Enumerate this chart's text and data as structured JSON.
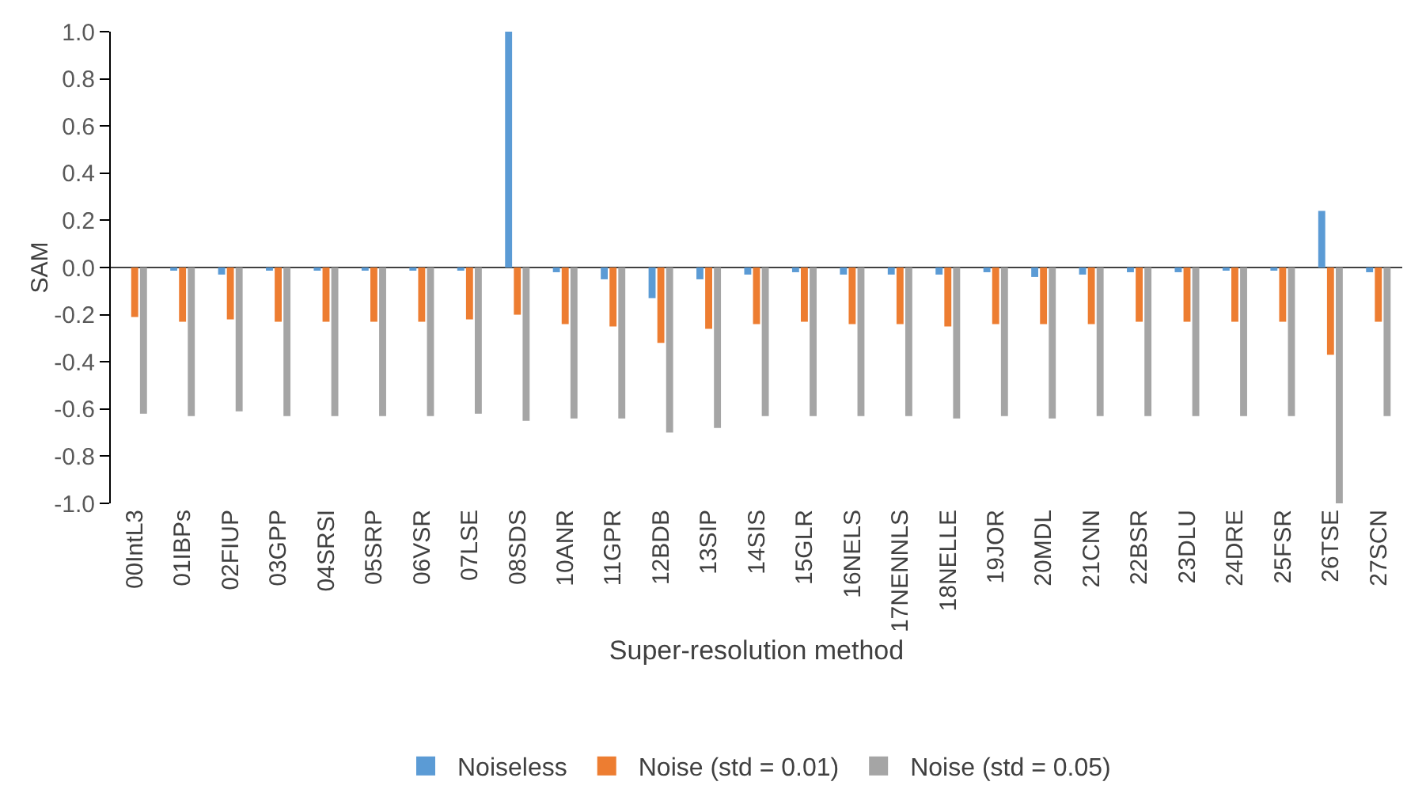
{
  "chart_data": {
    "type": "bar",
    "xlabel": "Super-resolution method",
    "ylabel": "SAM",
    "categories": [
      "00IntL3",
      "01IBPs",
      "02FIUP",
      "03GPP",
      "04SRSI",
      "05SRP",
      "06VSR",
      "07LSE",
      "08SDS",
      "10ANR",
      "11GPR",
      "12BDB",
      "13SIP",
      "14SIS",
      "15GLR",
      "16NELS",
      "17NENNLS",
      "18NELLE",
      "19JOR",
      "20MDL",
      "21CNN",
      "22BSR",
      "23DLU",
      "24DRE",
      "25FSR",
      "26TSE",
      "27SCN"
    ],
    "series": [
      {
        "name": "Noiseless",
        "color": "#5b9bd5",
        "values": [
          0,
          -0.01,
          -0.03,
          -0.01,
          -0.01,
          -0.01,
          -0.01,
          -0.01,
          1.0,
          -0.02,
          -0.05,
          -0.13,
          -0.05,
          -0.03,
          -0.02,
          -0.03,
          -0.03,
          -0.03,
          -0.02,
          -0.04,
          -0.03,
          -0.02,
          -0.02,
          -0.01,
          -0.01,
          0.24,
          -0.02
        ]
      },
      {
        "name": "Noise (std = 0.01)",
        "color": "#ed7d31",
        "values": [
          -0.21,
          -0.23,
          -0.22,
          -0.23,
          -0.23,
          -0.23,
          -0.23,
          -0.22,
          -0.2,
          -0.24,
          -0.25,
          -0.32,
          -0.26,
          -0.24,
          -0.23,
          -0.24,
          -0.24,
          -0.25,
          -0.24,
          -0.24,
          -0.24,
          -0.23,
          -0.23,
          -0.23,
          -0.23,
          -0.37,
          -0.23
        ]
      },
      {
        "name": "Noise (std = 0.05)",
        "color": "#a5a5a5",
        "values": [
          -0.62,
          -0.63,
          -0.61,
          -0.63,
          -0.63,
          -0.63,
          -0.63,
          -0.62,
          -0.65,
          -0.64,
          -0.64,
          -0.7,
          -0.68,
          -0.63,
          -0.63,
          -0.63,
          -0.63,
          -0.64,
          -0.63,
          -0.64,
          -0.63,
          -0.63,
          -0.63,
          -0.63,
          -0.63,
          -1.0,
          -0.63
        ]
      }
    ],
    "ylim": [
      -1.0,
      1.0
    ],
    "yticks": [
      {
        "value": -1,
        "label": "-1.0"
      },
      {
        "value": -0.8,
        "label": "-0.8"
      },
      {
        "value": -0.6,
        "label": "-0.6"
      },
      {
        "value": -0.4,
        "label": "-0.4"
      },
      {
        "value": -0.2,
        "label": "-0.2"
      },
      {
        "value": 0,
        "label": "0.0"
      },
      {
        "value": 0.2,
        "label": "0.2"
      },
      {
        "value": 0.4,
        "label": "0.4"
      },
      {
        "value": 0.6,
        "label": "0.6"
      },
      {
        "value": 0.8,
        "label": "0.8"
      },
      {
        "value": 1,
        "label": "1.0"
      }
    ],
    "legend": "bottom"
  }
}
